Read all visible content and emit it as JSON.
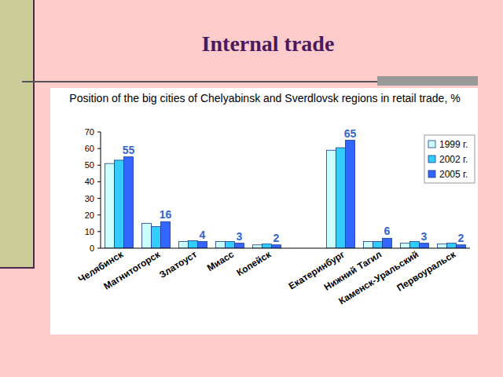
{
  "heading": "Internal trade",
  "chart_data": {
    "type": "bar",
    "title": "Position of the big cities of Chelyabinsk and Sverdlovsk regions in retail trade, %",
    "categories": [
      "Челябинск",
      "Магнитогорск",
      "Златоуст",
      "Миасс",
      "Копейск",
      null,
      "Екатеринбург",
      "Нижний Тагил",
      "Каменск-Уральский",
      "Первоуральск"
    ],
    "series": [
      {
        "name": "1999 г.",
        "color": "#ccffff",
        "values": [
          51,
          15,
          4,
          4,
          2,
          null,
          59,
          4,
          3,
          2.5
        ]
      },
      {
        "name": "2002 г.",
        "color": "#33ccff",
        "values": [
          53,
          13,
          4.5,
          4,
          2.5,
          null,
          60.5,
          4,
          4,
          3
        ]
      },
      {
        "name": "2005 г.",
        "color": "#3366ff",
        "values": [
          55,
          16,
          4,
          3,
          2,
          null,
          65,
          6,
          3,
          2
        ],
        "data_labels": true
      }
    ],
    "ylim": [
      0,
      70
    ],
    "yticks": [
      0,
      10,
      20,
      30,
      40,
      50,
      60,
      70
    ],
    "grid": false,
    "legend": "upper right"
  }
}
